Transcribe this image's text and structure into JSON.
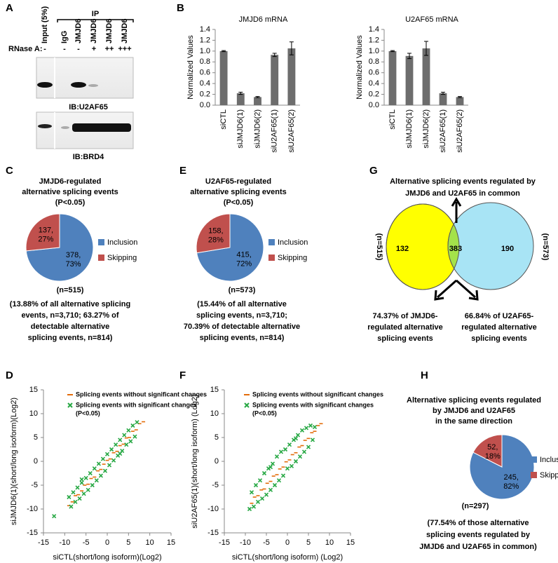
{
  "panel_labels": [
    "A",
    "B",
    "C",
    "D",
    "E",
    "F",
    "G",
    "H"
  ],
  "western_blot": {
    "ip_label": "IP",
    "rnase_label": "RNase A:",
    "lanes": [
      "Input (5%)",
      "IgG",
      "JMJD6",
      "JMJD6",
      "JMJD6",
      "JMJD6"
    ],
    "rnase": [
      "-",
      "-",
      "-",
      "+",
      "++",
      "+++"
    ],
    "blots": [
      "IB:U2AF65",
      "IB:BRD4"
    ]
  },
  "venn": {
    "title": [
      "Alternative splicing events regulated by",
      "JMJD6 and U2AF65 in common"
    ],
    "left": "132",
    "overlap": "383",
    "right": "190",
    "left_n": "(n=515)",
    "right_n": "(n=573)",
    "left_caption": [
      "74.37% of JMJD6-",
      "regulated alternative",
      "splicing events"
    ],
    "right_caption": [
      "66.84% of U2AF65-",
      "regulated alternative",
      "splicing events"
    ]
  },
  "chart_data": [
    {
      "type": "bar",
      "title": "JMJD6 mRNA",
      "ylabel": "Normalized Values",
      "color": "#6d6d6d",
      "categories": [
        "siCTL",
        "siJMJD6(1)",
        "siJMJD6(2)",
        "siU2AF65(1)",
        "siU2AF65(2)"
      ],
      "values": [
        1.0,
        0.22,
        0.15,
        0.93,
        1.05
      ],
      "errors": [
        0.01,
        0.02,
        0.01,
        0.03,
        0.12
      ],
      "ylim": [
        0,
        1.4
      ],
      "yticks": [
        {
          "value": 0,
          "label": "0.0"
        },
        0.2,
        0.4,
        0.6,
        0.8,
        {
          "value": 1,
          "label": "1.0"
        },
        1.2,
        1.4
      ]
    },
    {
      "type": "bar",
      "title": "U2AF65 mRNA",
      "ylabel": "Normalized Values",
      "color": "#6d6d6d",
      "categories": [
        "siCTL",
        "siJMJD6(1)",
        "siJMJD6(2)",
        "siU2AF65(1)",
        "siU2AF65(2)"
      ],
      "values": [
        1.0,
        0.91,
        1.05,
        0.22,
        0.15
      ],
      "errors": [
        0.01,
        0.05,
        0.13,
        0.02,
        0.01
      ],
      "ylim": [
        0,
        1.4
      ],
      "yticks": [
        {
          "value": 0,
          "label": "0.0"
        },
        0.2,
        0.4,
        0.6,
        0.8,
        {
          "value": 1,
          "label": "1.0"
        },
        1.2,
        1.4
      ]
    },
    {
      "type": "pie",
      "title": [
        "JMJD6-regulated",
        "alternative splicing events",
        "(P<0.05)"
      ],
      "categories": [
        "Inclusion",
        "Skipping"
      ],
      "values": [
        378,
        137
      ],
      "value_labels": [
        [
          "378,",
          "73%"
        ],
        [
          "137,",
          "27%"
        ]
      ],
      "colors": [
        "#4f81bd",
        "#c0504d"
      ],
      "n_label": "(n=515)",
      "caption": [
        "(13.88% of all alternative splicing",
        "events, n=3,710; 63.27% of",
        "detectable alternative",
        "splicing events, n=814)"
      ]
    },
    {
      "type": "pie",
      "title": [
        "U2AF65-regulated",
        "alternative splicing events",
        "(P<0.05)"
      ],
      "categories": [
        "Inclusion",
        "Skipping"
      ],
      "values": [
        415,
        158
      ],
      "value_labels": [
        [
          "415,",
          "72%"
        ],
        [
          "158,",
          "28%"
        ]
      ],
      "colors": [
        "#4f81bd",
        "#c0504d"
      ],
      "n_label": "(n=573)",
      "caption": [
        "(15.44% of all alternative",
        "splicing events, n=3,710;",
        "70.39% of detectable alternative",
        "splicing events, n=814)"
      ]
    },
    {
      "type": "scatter",
      "xlabel": "siCTL(short/long isoform)(Log2)",
      "ylabel": "siJMJD6(1)(short/long isoform)(Log2)",
      "xlim": [
        -15,
        15
      ],
      "ylim": [
        -15,
        15
      ],
      "xticks": [
        -15,
        -10,
        -5,
        0,
        5,
        10,
        15
      ],
      "yticks": [
        -15,
        -10,
        -5,
        0,
        5,
        10,
        15
      ],
      "legend_note": "(P<0.05)",
      "series": [
        {
          "name": "Splicing events without significant changes",
          "color": "#e36c0a",
          "marker": "dash",
          "x": [
            -9,
            -8.2,
            -7.5,
            -6.8,
            -6,
            -5.3,
            -4.5,
            -3.8,
            -3,
            -2.2,
            -1.5,
            -0.8,
            0,
            0.7,
            1.5,
            2.3,
            3,
            3.8,
            4.5,
            5.2,
            6,
            6.8,
            7.6,
            8.5
          ],
          "values": [
            -9.3,
            -8.5,
            -7.2,
            -7,
            -6.2,
            -5,
            -4.8,
            -3.6,
            -3.3,
            -2,
            -1.7,
            -0.6,
            0.2,
            0.5,
            1.8,
            2.1,
            3.3,
            3.6,
            4.9,
            5,
            6.3,
            6.6,
            7.9,
            8.3
          ]
        },
        {
          "name": "Splicing events with significant changes",
          "color": "#27a844",
          "marker": "x",
          "x": [
            -12.5,
            -9,
            -8.5,
            -8,
            -7.5,
            -7,
            -6.5,
            -6,
            -5.5,
            -5,
            -4.5,
            -4,
            -3.5,
            -3,
            -2.5,
            -2,
            -1.5,
            -1,
            -0.5,
            0,
            0.5,
            1,
            1.5,
            2,
            2.5,
            3,
            3.5,
            4,
            4.5,
            5,
            5.5,
            6,
            6.5,
            7,
            -6,
            3
          ],
          "values": [
            -11.5,
            -7.5,
            -9.5,
            -6.5,
            -8.5,
            -5.5,
            -7.8,
            -4.5,
            -6.8,
            -3.5,
            -6,
            -2.5,
            -5,
            -1.5,
            -4,
            -0.5,
            -3,
            0.5,
            -2,
            1.5,
            -0.8,
            2.5,
            0.2,
            3.5,
            1.2,
            4.5,
            2.2,
            5.5,
            3.5,
            6.5,
            4.2,
            7.5,
            5.2,
            8.2,
            -3.8,
            1.6
          ]
        }
      ]
    },
    {
      "type": "scatter",
      "xlabel": "siCTL(short/long isoform) (Log2)",
      "ylabel": "siU2AF65(1)(short/long isoform) (Log2)",
      "xlim": [
        -15,
        15
      ],
      "ylim": [
        -15,
        15
      ],
      "xticks": [
        -15,
        -10,
        -5,
        0,
        5,
        10,
        15
      ],
      "yticks": [
        -15,
        -10,
        -5,
        0,
        5,
        10,
        15
      ],
      "legend_note": "(P<0.05)",
      "series": [
        {
          "name": "Splicing events without significant changes",
          "color": "#e36c0a",
          "marker": "dash",
          "x": [
            -8.5,
            -7.8,
            -7,
            -6.2,
            -5.5,
            -4.8,
            -4,
            -3.3,
            -2.5,
            -1.8,
            -1,
            -0.3,
            0.5,
            1.2,
            2,
            2.8,
            3.5,
            4.2,
            5,
            5.8,
            6.5,
            7.3,
            8
          ],
          "values": [
            -8.8,
            -7.5,
            -7.2,
            -6,
            -5.8,
            -4.6,
            -4.2,
            -3.1,
            -2.8,
            -1.6,
            -1.2,
            -0.1,
            0.3,
            1.4,
            1.8,
            3,
            3.3,
            4.4,
            4.8,
            6,
            6.3,
            7.5,
            7.9
          ]
        },
        {
          "name": "Splicing events with significant changes",
          "color": "#27a844",
          "marker": "x",
          "x": [
            -9,
            -8.5,
            -8,
            -7.5,
            -7,
            -6.5,
            -6,
            -5.5,
            -5,
            -4.5,
            -4,
            -3.5,
            -3,
            -2.5,
            -2,
            -1.5,
            -1,
            -0.5,
            0,
            0.5,
            1,
            1.5,
            2,
            2.5,
            3,
            3.5,
            4,
            4.5,
            5,
            5.5,
            6,
            6.5,
            -4,
            2
          ],
          "values": [
            -10,
            -6.5,
            -9.5,
            -5,
            -8.5,
            -4,
            -7.8,
            -2.5,
            -7,
            -1.5,
            -6,
            -0.5,
            -5,
            1,
            -4,
            2,
            -3,
            2.5,
            -1.5,
            3.5,
            -1,
            4.5,
            0,
            5.5,
            1,
            6.5,
            2,
            7,
            3,
            7.5,
            4.5,
            7.2,
            -1.2,
            4.8
          ]
        }
      ]
    },
    {
      "type": "pie",
      "title": [
        "Alternative splicing events regulated",
        "by JMJD6 and U2AF65",
        "in the same direction"
      ],
      "categories": [
        "Inclusion",
        "Skipping"
      ],
      "values": [
        245,
        52
      ],
      "value_labels": [
        [
          "245,",
          "82%"
        ],
        [
          "52,",
          "18%"
        ]
      ],
      "colors": [
        "#4f81bd",
        "#c0504d"
      ],
      "n_label": "(n=297)",
      "caption": [
        "(77.54% of those alternative",
        "splicing events regulated by",
        "JMJD6 and U2AF65 in common)"
      ]
    }
  ]
}
